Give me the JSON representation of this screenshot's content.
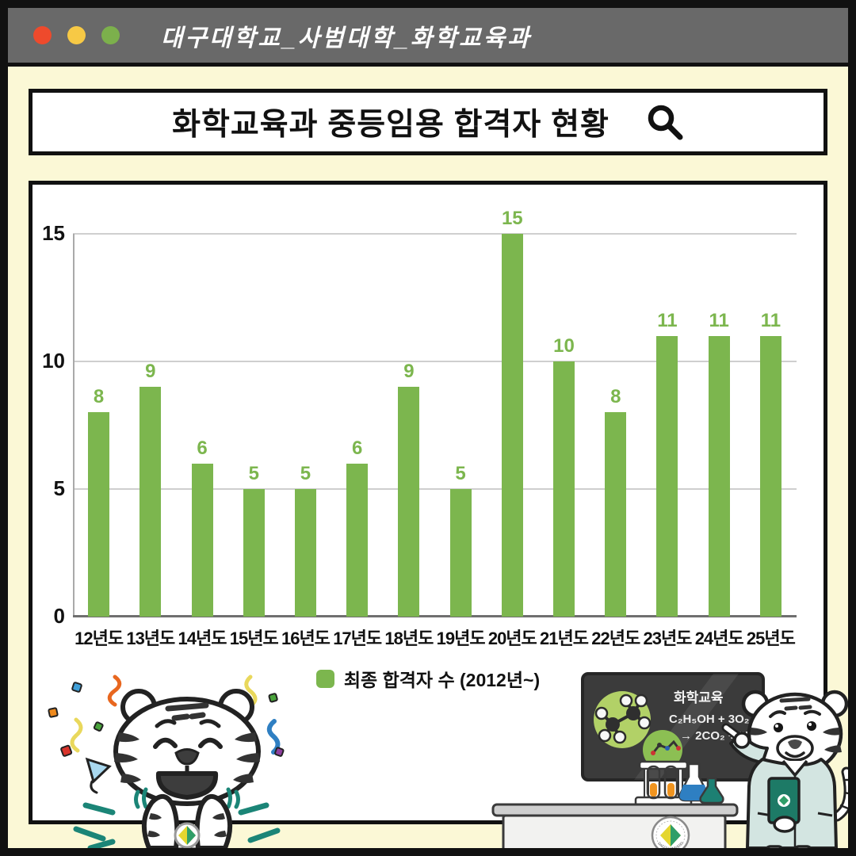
{
  "titlebar": {
    "title": "대구대학교_사범대학_화학교육과",
    "dot_colors": [
      "#ee4a2c",
      "#f7c945",
      "#7cb04c"
    ]
  },
  "search": {
    "title": "화학교육과 중등임용 합격자 현황"
  },
  "chart_data": {
    "type": "bar",
    "title": "화학교육과 중등임용 합격자 현황",
    "categories": [
      "12년도",
      "13년도",
      "14년도",
      "15년도",
      "16년도",
      "17년도",
      "18년도",
      "19년도",
      "20년도",
      "21년도",
      "22년도",
      "23년도",
      "24년도",
      "25년도"
    ],
    "values": [
      8,
      9,
      6,
      5,
      5,
      6,
      9,
      5,
      15,
      10,
      8,
      11,
      11,
      11
    ],
    "ylim": [
      0,
      15
    ],
    "yticks": [
      0,
      5,
      10,
      15
    ],
    "grid": true,
    "bar_color": "#7cb64e",
    "value_label_color": "#7cb64e",
    "legend": {
      "label": "최종 합격자 수 (2012년~)",
      "position": "bottom"
    }
  },
  "illustrations": {
    "left_mascot": "celebrating-tiger-with-confetti",
    "right_mascot": "teacher-tiger-pointing-at-blackboard",
    "blackboard": {
      "heading": "화학교육",
      "equation_line1": "C₂H₅OH + 3O₂",
      "equation_line2": "→ 2CO₂ + 3H₂O"
    },
    "desk_emblem_text": "DAEGU UNIVERSITY"
  },
  "colors": {
    "background": "#fbf8d6",
    "titlebar": "#696969",
    "frame": "#111111",
    "accent_teal": "#1b8577"
  }
}
